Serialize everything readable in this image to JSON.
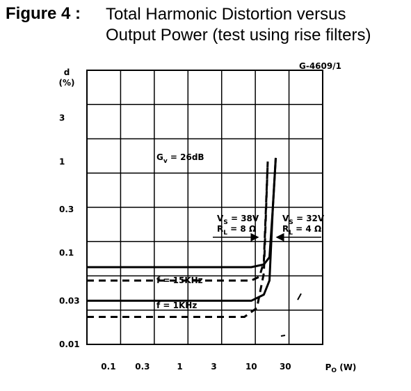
{
  "figure": {
    "label": "Figure 4 :",
    "title_line1": "Total Harmonic Distortion versus",
    "title_line2": "Output Power (test using rise filters)"
  },
  "chart_data": {
    "type": "line",
    "code": "G-4609/1",
    "xlabel": "Po (W)",
    "ylabel": "d (%)",
    "x_scale": "log",
    "y_scale": "log",
    "xlim": [
      0.05,
      100
    ],
    "ylim": [
      0.01,
      10
    ],
    "grid": true,
    "x_ticks": [
      "0.1",
      "0.3",
      "1",
      "3",
      "10",
      "30"
    ],
    "y_ticks": [
      "0.01",
      "0.03",
      "0.1",
      "0.3",
      "1",
      "3"
    ],
    "annotations": {
      "gain": "Gv = 26dB",
      "f_15k": "f = 15KHz",
      "f_1k": "f = 1KHz",
      "vs38": "Vs = 38V",
      "rl8": "RL = 8 Ω",
      "vs32": "Vs = 32V",
      "rl4": "RL = 4 Ω"
    },
    "series": [
      {
        "group": "f = 15KHz",
        "style": "solid",
        "x": [
          0.05,
          10,
          15,
          18,
          20,
          22
        ],
        "y": [
          0.07,
          0.07,
          0.075,
          0.09,
          0.3,
          1.1
        ]
      },
      {
        "group": "f = 15KHz",
        "style": "dashed",
        "x": [
          0.05,
          10,
          13,
          15,
          17
        ],
        "y": [
          0.05,
          0.05,
          0.055,
          0.08,
          1.0
        ]
      },
      {
        "group": "f = 1KHz",
        "style": "solid",
        "x": [
          0.05,
          10,
          15,
          18,
          20,
          22
        ],
        "y": [
          0.03,
          0.03,
          0.035,
          0.05,
          0.3,
          1.1
        ]
      },
      {
        "group": "f = 1KHz",
        "style": "dashed",
        "x": [
          0.05,
          8,
          12,
          15,
          17
        ],
        "y": [
          0.02,
          0.02,
          0.025,
          0.06,
          1.0
        ]
      }
    ]
  }
}
